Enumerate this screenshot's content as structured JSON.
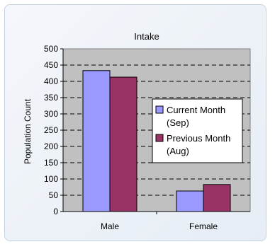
{
  "chart_data": {
    "type": "bar",
    "title": "Intake",
    "xlabel": "",
    "ylabel": "Population Count",
    "categories": [
      "Male",
      "Female"
    ],
    "series": [
      {
        "name": "Current Month (Sep)",
        "values": [
          433,
          63
        ],
        "color": "#9999ff"
      },
      {
        "name": "Previous Month (Aug)",
        "values": [
          413,
          83
        ],
        "color": "#993366"
      }
    ],
    "ylim": [
      0,
      500
    ],
    "yticks": [
      0,
      50,
      100,
      150,
      200,
      250,
      300,
      350,
      400,
      450,
      500
    ],
    "grid": true,
    "legend": "right",
    "plot_background": "#c0c0c0",
    "legend_lines": [
      [
        "Current Month",
        "(Sep)"
      ],
      [
        "Previous Month",
        "(Aug)"
      ]
    ]
  }
}
